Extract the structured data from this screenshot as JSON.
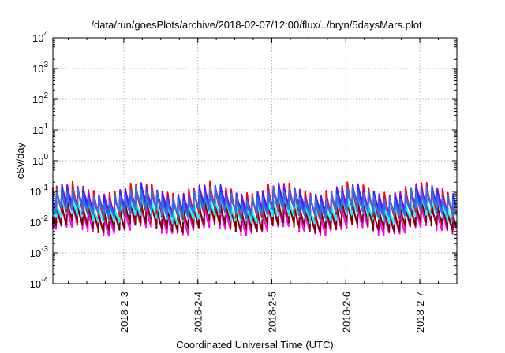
{
  "chart_data": {
    "type": "line",
    "title": "/data/run/goesPlots/archive/2018-02-07/12:00/flux/../bryn/5daysMars.plot",
    "xlabel": "Coordinated Universal Time (UTC)",
    "ylabel": "cSv/day",
    "yscale": "log",
    "ylim": [
      0.0001,
      10000
    ],
    "xlim": [
      "2018-02-02 01:00",
      "2018-02-07 12:00"
    ],
    "grid": true,
    "legend": "none",
    "y_ticks": [
      {
        "base": "10",
        "exp": "-4",
        "value": 0.0001
      },
      {
        "base": "10",
        "exp": "-3",
        "value": 0.001
      },
      {
        "base": "10",
        "exp": "-2",
        "value": 0.01
      },
      {
        "base": "10",
        "exp": "-1",
        "value": 0.1
      },
      {
        "base": "10",
        "exp": "0",
        "value": 1
      },
      {
        "base": "10",
        "exp": "1",
        "value": 10
      },
      {
        "base": "10",
        "exp": "2",
        "value": 100
      },
      {
        "base": "10",
        "exp": "3",
        "value": 1000
      },
      {
        "base": "10",
        "exp": "4",
        "value": 10000
      }
    ],
    "x_ticks": [
      {
        "label": "2018-2-3",
        "value": "2018-02-03 00:00"
      },
      {
        "label": "2018-2-4",
        "value": "2018-02-04 00:00"
      },
      {
        "label": "2018-2-5",
        "value": "2018-02-05 00:00"
      },
      {
        "label": "2018-2-6",
        "value": "2018-02-06 00:00"
      },
      {
        "label": "2018-2-7",
        "value": "2018-02-07 00:00"
      }
    ],
    "pattern": {
      "description_of_cycle": "each orbital segment rises sharply then decays; ~14 segments per day",
      "segments_per_day": 14
    },
    "series": [
      {
        "color": "#ff00ff",
        "peak": 0.03,
        "trough": 0.006
      },
      {
        "color": "#ff0000",
        "peak": 0.11,
        "trough": 0.02
      },
      {
        "color": "#800000",
        "peak": 0.035,
        "trough": 0.0075
      },
      {
        "color": "#00ffff",
        "peak": 0.045,
        "trough": 0.015
      },
      {
        "color": "#8000ff",
        "peak": 0.1,
        "trough": 0.03
      },
      {
        "color": "#0040ff",
        "peak": 0.085,
        "trough": 0.025
      },
      {
        "color": "#4169e1",
        "peak": 0.08,
        "trough": 0.022
      }
    ]
  }
}
